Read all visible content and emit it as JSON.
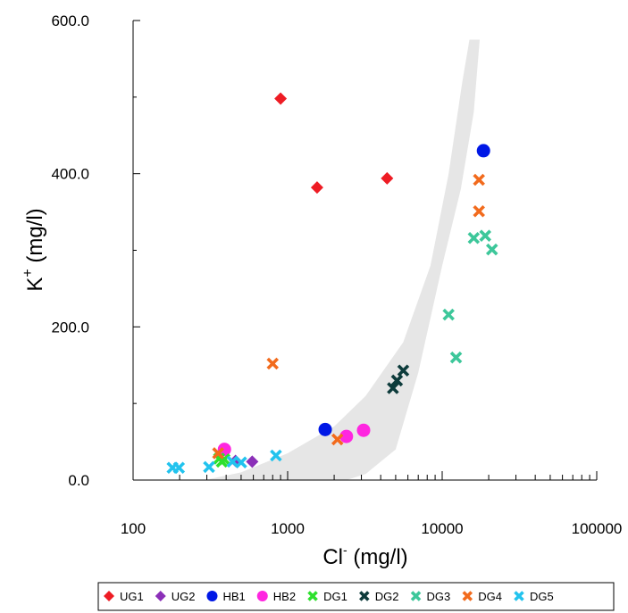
{
  "chart_data": {
    "type": "scatter",
    "title": "",
    "xlabel": {
      "main": "Cl",
      "sup": "-",
      "unit": " (mg/l)"
    },
    "ylabel": {
      "main": "K",
      "sup": "+",
      "unit": " (mg/l)"
    },
    "xscale": "log",
    "xlim": [
      100,
      100000
    ],
    "ylim": [
      0,
      600
    ],
    "x_tick_labels": [
      "100",
      "1000",
      "10000",
      "100000"
    ],
    "y_tick_labels": [
      "0.0",
      "200.0",
      "400.0",
      "600.0"
    ],
    "grid": false,
    "legend_position": "bottom",
    "shaded_envelope": {
      "color": "#e6e6e6",
      "left_edge": [
        [
          290,
          0
        ],
        [
          500,
          10
        ],
        [
          1000,
          35
        ],
        [
          2000,
          70
        ],
        [
          3200,
          110
        ],
        [
          5600,
          180
        ],
        [
          8400,
          280
        ],
        [
          11000,
          400
        ],
        [
          13500,
          520
        ],
        [
          15000,
          575
        ]
      ],
      "right_edge": [
        [
          17500,
          575
        ],
        [
          16000,
          480
        ],
        [
          13200,
          380
        ],
        [
          10000,
          280
        ],
        [
          7000,
          140
        ],
        [
          5000,
          40
        ],
        [
          3200,
          8
        ],
        [
          2400,
          0
        ]
      ]
    },
    "series": [
      {
        "name": "UG1",
        "marker": "diamond",
        "color": "#ee1c24",
        "points": [
          [
            900,
            498
          ],
          [
            1550,
            382
          ],
          [
            4400,
            394
          ]
        ]
      },
      {
        "name": "UG2",
        "marker": "diamond",
        "color": "#8b2fb8",
        "points": [
          [
            460,
            25
          ],
          [
            590,
            24
          ]
        ]
      },
      {
        "name": "HB1",
        "marker": "circle",
        "color": "#0018e6",
        "points": [
          [
            1750,
            66
          ],
          [
            18500,
            430
          ]
        ]
      },
      {
        "name": "HB2",
        "marker": "circle",
        "color": "#ff26e0",
        "points": [
          [
            390,
            40
          ],
          [
            2400,
            57
          ],
          [
            3100,
            65
          ]
        ]
      },
      {
        "name": "DG1",
        "marker": "x",
        "color": "#2ee02e",
        "points": [
          [
            360,
            28
          ],
          [
            375,
            24
          ],
          [
            390,
            27
          ]
        ]
      },
      {
        "name": "DG2",
        "marker": "x",
        "color": "#0d3b3b",
        "points": [
          [
            4800,
            120
          ],
          [
            5100,
            130
          ],
          [
            5600,
            143
          ]
        ]
      },
      {
        "name": "DG3",
        "marker": "x",
        "color": "#3dc79a",
        "points": [
          [
            11000,
            216
          ],
          [
            12300,
            160
          ],
          [
            16000,
            316
          ],
          [
            19000,
            319
          ],
          [
            21000,
            301
          ]
        ]
      },
      {
        "name": "DG4",
        "marker": "x",
        "color": "#f26b1d",
        "points": [
          [
            355,
            35
          ],
          [
            800,
            152
          ],
          [
            2100,
            53
          ],
          [
            17300,
            392
          ],
          [
            17300,
            351
          ]
        ]
      },
      {
        "name": "DG5",
        "marker": "x",
        "color": "#22c3ee",
        "points": [
          [
            180,
            16
          ],
          [
            198,
            16
          ],
          [
            310,
            17
          ],
          [
            440,
            24
          ],
          [
            500,
            23
          ],
          [
            840,
            32
          ]
        ]
      }
    ]
  }
}
